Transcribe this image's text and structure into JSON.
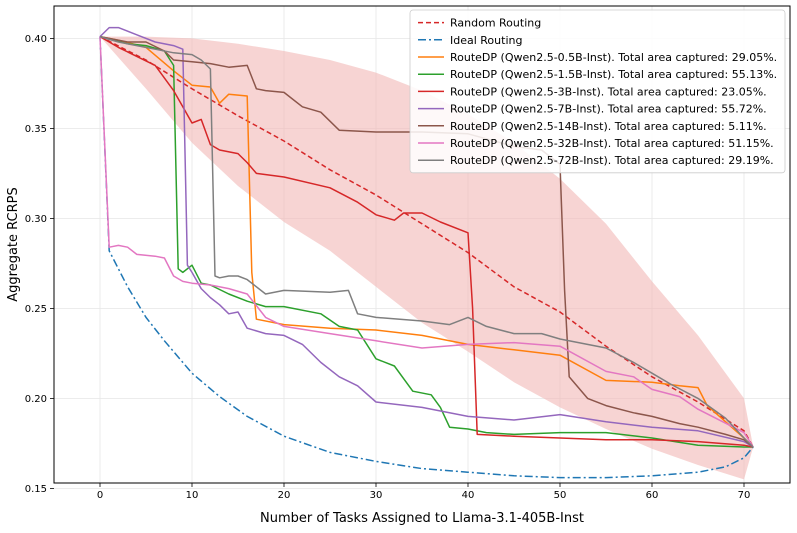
{
  "chart_data": {
    "type": "line",
    "title": "",
    "xlabel": "Number of Tasks Assigned to Llama-3.1-405B-Inst",
    "ylabel": "Aggregate RCRPS",
    "xlim": [
      -5,
      75
    ],
    "ylim": [
      0.153,
      0.418
    ],
    "xticks": [
      0,
      10,
      20,
      30,
      40,
      50,
      60,
      70
    ],
    "yticks": [
      0.15,
      0.2,
      0.25,
      0.3,
      0.35,
      0.4
    ],
    "xtick_labels": [
      "0",
      "10",
      "20",
      "30",
      "40",
      "50",
      "60",
      "70"
    ],
    "ytick_labels": [
      "0.15",
      "0.20",
      "0.25",
      "0.30",
      "0.35",
      "0.40"
    ],
    "grid": true,
    "legend_position": "top-right",
    "band": {
      "color": "#f2b8b5",
      "x": [
        0,
        5,
        10,
        15,
        20,
        25,
        30,
        35,
        40,
        45,
        50,
        55,
        60,
        65,
        70,
        71
      ],
      "upper": [
        0.401,
        0.401,
        0.4,
        0.397,
        0.393,
        0.388,
        0.381,
        0.371,
        0.358,
        0.342,
        0.322,
        0.297,
        0.265,
        0.235,
        0.2,
        0.173
      ],
      "lower": [
        0.401,
        0.372,
        0.342,
        0.318,
        0.298,
        0.282,
        0.262,
        0.242,
        0.226,
        0.209,
        0.195,
        0.183,
        0.172,
        0.163,
        0.155,
        0.173
      ]
    },
    "series": [
      {
        "name": "Random Routing",
        "color": "#d62728",
        "dash": "5,3",
        "width": 1.5,
        "x": [
          0,
          5,
          10,
          15,
          20,
          25,
          30,
          35,
          40,
          45,
          50,
          55,
          60,
          65,
          70,
          71
        ],
        "y": [
          0.401,
          0.388,
          0.372,
          0.357,
          0.343,
          0.327,
          0.313,
          0.297,
          0.281,
          0.262,
          0.248,
          0.229,
          0.212,
          0.198,
          0.182,
          0.173
        ]
      },
      {
        "name": "Ideal Routing",
        "color": "#1f77b4",
        "dash": "8,3,2,3",
        "width": 1.5,
        "x": [
          0,
          1,
          3,
          5,
          7,
          10,
          13,
          16,
          20,
          25,
          30,
          35,
          40,
          45,
          50,
          55,
          60,
          65,
          68,
          70,
          71
        ],
        "y": [
          0.401,
          0.282,
          0.262,
          0.245,
          0.232,
          0.214,
          0.201,
          0.19,
          0.179,
          0.17,
          0.165,
          0.161,
          0.159,
          0.157,
          0.156,
          0.156,
          0.157,
          0.159,
          0.162,
          0.167,
          0.173
        ]
      },
      {
        "name": "RouteDP (Qwen2.5-0.5B-Inst). Total area captured: 29.05%.",
        "color": "#ff7f0e",
        "dash": "",
        "width": 1.5,
        "x": [
          0,
          2,
          5,
          8,
          10,
          12,
          13,
          14,
          16,
          16.5,
          17,
          20,
          25,
          30,
          35,
          40,
          45,
          50,
          55,
          60,
          63,
          65,
          66,
          70,
          71
        ],
        "y": [
          0.401,
          0.399,
          0.395,
          0.382,
          0.374,
          0.373,
          0.364,
          0.369,
          0.368,
          0.27,
          0.244,
          0.241,
          0.239,
          0.238,
          0.235,
          0.23,
          0.227,
          0.224,
          0.21,
          0.209,
          0.207,
          0.206,
          0.196,
          0.178,
          0.173
        ]
      },
      {
        "name": "RouteDP (Qwen2.5-1.5B-Inst). Total area captured: 55.13%.",
        "color": "#2ca02c",
        "dash": "",
        "width": 1.5,
        "x": [
          0,
          3,
          5,
          7,
          8,
          8.5,
          9,
          10,
          11,
          12,
          14,
          16,
          18,
          20,
          24,
          26,
          28,
          30,
          32,
          34,
          36,
          37,
          38,
          40,
          42,
          45,
          50,
          55,
          60,
          65,
          70,
          71
        ],
        "y": [
          0.401,
          0.397,
          0.396,
          0.393,
          0.385,
          0.272,
          0.27,
          0.274,
          0.264,
          0.263,
          0.258,
          0.254,
          0.251,
          0.251,
          0.247,
          0.24,
          0.238,
          0.222,
          0.218,
          0.204,
          0.202,
          0.195,
          0.184,
          0.183,
          0.181,
          0.18,
          0.181,
          0.181,
          0.178,
          0.174,
          0.173,
          0.173
        ]
      },
      {
        "name": "RouteDP (Qwen2.5-3B-Inst). Total area captured: 23.05%.",
        "color": "#d62728",
        "dash": "",
        "width": 1.5,
        "x": [
          0,
          2,
          4,
          6,
          8,
          9,
          10,
          11,
          12,
          13,
          15,
          16,
          17,
          20,
          25,
          28,
          30,
          32,
          33,
          35,
          37,
          40,
          40.5,
          41,
          45,
          50,
          55,
          60,
          65,
          70,
          71
        ],
        "y": [
          0.401,
          0.395,
          0.39,
          0.385,
          0.371,
          0.362,
          0.353,
          0.355,
          0.341,
          0.338,
          0.336,
          0.331,
          0.325,
          0.323,
          0.317,
          0.309,
          0.302,
          0.299,
          0.303,
          0.303,
          0.298,
          0.292,
          0.25,
          0.18,
          0.179,
          0.178,
          0.177,
          0.177,
          0.176,
          0.174,
          0.173
        ]
      },
      {
        "name": "RouteDP (Qwen2.5-7B-Inst). Total area captured: 55.72%.",
        "color": "#9467bd",
        "dash": "",
        "width": 1.5,
        "x": [
          0,
          1,
          2,
          4,
          6,
          8,
          9,
          9.5,
          10,
          11,
          12,
          13,
          14,
          15,
          16,
          18,
          20,
          22,
          24,
          26,
          28,
          30,
          35,
          40,
          45,
          50,
          55,
          60,
          65,
          70,
          71
        ],
        "y": [
          0.401,
          0.406,
          0.406,
          0.402,
          0.398,
          0.396,
          0.394,
          0.274,
          0.27,
          0.261,
          0.256,
          0.252,
          0.247,
          0.248,
          0.239,
          0.236,
          0.235,
          0.23,
          0.22,
          0.212,
          0.207,
          0.198,
          0.195,
          0.19,
          0.188,
          0.191,
          0.187,
          0.184,
          0.182,
          0.176,
          0.173
        ]
      },
      {
        "name": "RouteDP (Qwen2.5-14B-Inst). Total area captured: 5.11%.",
        "color": "#8c564b",
        "dash": "",
        "width": 1.5,
        "x": [
          0,
          3,
          5,
          7,
          8,
          10,
          12,
          14,
          16,
          17,
          18,
          20,
          22,
          24,
          26,
          30,
          35,
          40,
          45,
          48,
          50,
          50.5,
          51,
          53,
          55,
          58,
          60,
          63,
          65,
          68,
          70,
          71
        ],
        "y": [
          0.401,
          0.398,
          0.398,
          0.393,
          0.388,
          0.387,
          0.386,
          0.384,
          0.385,
          0.372,
          0.371,
          0.37,
          0.362,
          0.359,
          0.349,
          0.348,
          0.348,
          0.347,
          0.34,
          0.338,
          0.33,
          0.26,
          0.212,
          0.2,
          0.196,
          0.192,
          0.19,
          0.186,
          0.184,
          0.18,
          0.177,
          0.173
        ]
      },
      {
        "name": "RouteDP (Qwen2.5-32B-Inst). Total area captured: 51.15%.",
        "color": "#e377c2",
        "dash": "",
        "width": 1.5,
        "x": [
          0,
          1,
          2,
          3,
          4,
          6,
          7,
          8,
          9,
          10,
          12,
          14,
          16,
          18,
          20,
          25,
          30,
          35,
          40,
          45,
          50,
          55,
          58,
          60,
          63,
          65,
          70,
          71
        ],
        "y": [
          0.401,
          0.284,
          0.285,
          0.284,
          0.28,
          0.279,
          0.278,
          0.268,
          0.265,
          0.264,
          0.263,
          0.261,
          0.258,
          0.245,
          0.24,
          0.236,
          0.232,
          0.228,
          0.23,
          0.231,
          0.229,
          0.215,
          0.212,
          0.205,
          0.201,
          0.194,
          0.181,
          0.173
        ]
      },
      {
        "name": "RouteDP (Qwen2.5-72B-Inst). Total area captured: 29.19%.",
        "color": "#7f7f7f",
        "dash": "",
        "width": 1.5,
        "x": [
          0,
          2,
          4,
          6,
          8,
          10,
          11,
          12,
          12.5,
          13,
          14,
          15,
          16,
          18,
          20,
          25,
          27,
          28,
          30,
          35,
          38,
          40,
          42,
          45,
          48,
          50,
          55,
          58,
          60,
          62,
          65,
          68,
          70,
          71
        ],
        "y": [
          0.401,
          0.398,
          0.396,
          0.394,
          0.392,
          0.391,
          0.388,
          0.383,
          0.268,
          0.267,
          0.268,
          0.268,
          0.266,
          0.258,
          0.26,
          0.259,
          0.26,
          0.247,
          0.245,
          0.243,
          0.241,
          0.245,
          0.24,
          0.236,
          0.236,
          0.233,
          0.228,
          0.22,
          0.214,
          0.208,
          0.2,
          0.189,
          0.178,
          0.173
        ]
      }
    ]
  }
}
